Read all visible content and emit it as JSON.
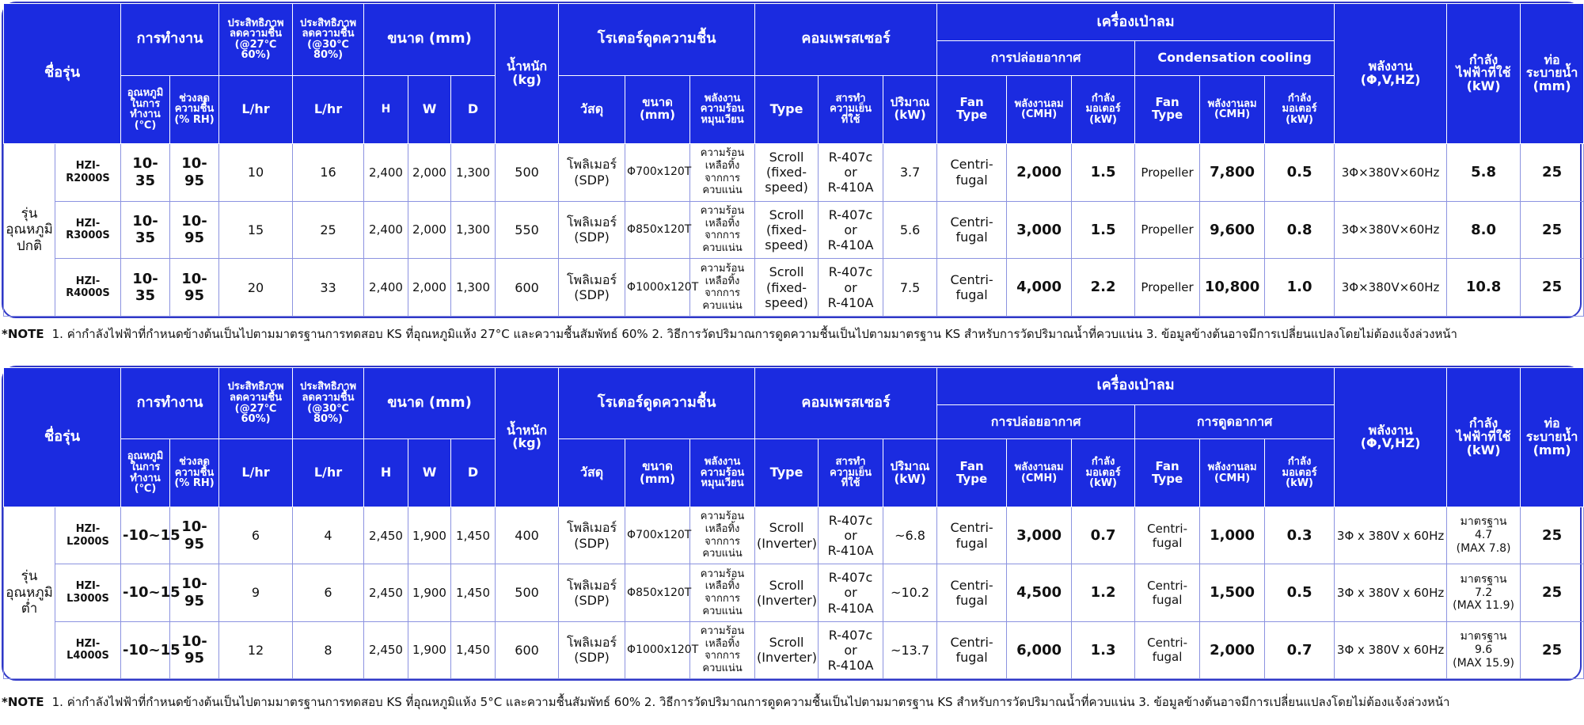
{
  "header": {
    "model_name": "ชื่อรุ่น",
    "operation": "การทำงาน",
    "op_temp": "อุณหภูมิ\nในการ\nทำงาน\n(℃)",
    "op_range": "ช่วงลด\nความชื้น\n(% RH)",
    "eff1_1": "ประสิทธิภาพ\nลดความชื้น\n(@27℃\n60%)",
    "eff2_1": "ประสิทธิภาพ\nลดความชื้น\n(@30℃\n80%)",
    "eff2_1_alt": "ประสิทธิภาพ\nลดความชื้น\n(@30℃\n80%)",
    "eff1_2": "ประสิทธิภาพ\nลดความชื้น\n(@27℃\n60%)",
    "eff2_2": "ประสิทธิภาพ\nลดความชื้น\n(@30℃\n80%)",
    "lhr": "L/hr",
    "size": "ขนาด (mm)",
    "h": "H",
    "w": "W",
    "d": "D",
    "weight": "น้ำหนัก\n(kg)",
    "rotor": "โรเตอร์ดูดความชื้น",
    "rotor_material": "วัสดุ",
    "rotor_size": "ขนาด\n(mm)",
    "rotor_energy": "พลังงาน\nความร้อน\nหมุนเวียน",
    "compressor": "คอมเพรสเซอร์",
    "comp_type": "Type",
    "comp_refrigerant": "สารทำ\nความเย็น\nที่ใช้",
    "comp_amount": "ปริมาณ\n(kW)",
    "blower": "เครื่องเป่าลม",
    "air_release": "การปล่อยอากาศ",
    "condensation_cooling": "Condensation cooling",
    "air_intake": "การดูดอากาศ",
    "fan_type": "Fan\nType",
    "airflow": "พลังงานลม\n(CMH)",
    "motor_power": "กำลัง\nมอเตอร์\n(kW)",
    "power_supply": "พลังงาน\n(Φ,V,HZ)",
    "power_used": "กำลัง\nไฟฟ้าที่ใช้\n(kW)",
    "drain_pipe": "ท่อ\nระบายน้ำ\n(mm)"
  },
  "table1": {
    "category": "รุ่น\nอุณหภูมิ\nปกติ",
    "rows": [
      {
        "model": "HZI-R2000S",
        "temp": "10-35",
        "rh": "10-95",
        "eff1": "10",
        "eff2": "16",
        "h": "2,400",
        "w": "2,000",
        "d": "1,300",
        "weight": "500",
        "material": "โพลิเมอร์\n(SDP)",
        "rotor_size": "Φ700x120T",
        "energy": "ความร้อน\nเหลือทิ้ง\nจากการ\nควบแน่น",
        "comp_type": "Scroll\n(fixed-\nspeed)",
        "refrigerant": "R-407c\nor\nR-410A",
        "comp_kw": "3.7",
        "fan1": "Centri-\nfugal",
        "cmh1": "2,000",
        "motor1": "1.5",
        "fan2": "Propeller",
        "cmh2": "7,800",
        "motor2": "0.5",
        "supply": "3Φ×380V×60Hz",
        "power": "5.8",
        "drain": "25"
      },
      {
        "model": "HZI-R3000S",
        "temp": "10-35",
        "rh": "10-95",
        "eff1": "15",
        "eff2": "25",
        "h": "2,400",
        "w": "2,000",
        "d": "1,300",
        "weight": "550",
        "material": "โพลิเมอร์\n(SDP)",
        "rotor_size": "Φ850x120T",
        "energy": "ความร้อน\nเหลือทิ้ง\nจากการ\nควบแน่น",
        "comp_type": "Scroll\n(fixed-\nspeed)",
        "refrigerant": "R-407c\nor\nR-410A",
        "comp_kw": "5.6",
        "fan1": "Centri-\nfugal",
        "cmh1": "3,000",
        "motor1": "1.5",
        "fan2": "Propeller",
        "cmh2": "9,600",
        "motor2": "0.8",
        "supply": "3Φ×380V×60Hz",
        "power": "8.0",
        "drain": "25"
      },
      {
        "model": "HZI-R4000S",
        "temp": "10-35",
        "rh": "10-95",
        "eff1": "20",
        "eff2": "33",
        "h": "2,400",
        "w": "2,000",
        "d": "1,300",
        "weight": "600",
        "material": "โพลิเมอร์\n(SDP)",
        "rotor_size": "Φ1000x120T",
        "energy": "ความร้อน\nเหลือทิ้ง\nจากการ\nควบแน่น",
        "comp_type": "Scroll\n(fixed-\nspeed)",
        "refrigerant": "R-407c\nor\nR-410A",
        "comp_kw": "7.5",
        "fan1": "Centri-\nfugal",
        "cmh1": "4,000",
        "motor1": "2.2",
        "fan2": "Propeller",
        "cmh2": "10,800",
        "motor2": "1.0",
        "supply": "3Φ×380V×60Hz",
        "power": "10.8",
        "drain": "25"
      }
    ],
    "note_label": "*NOTE",
    "note_text": "1. ค่ากำลังไฟฟ้าที่กำหนดข้างต้นเป็นไปตามมาตรฐานการทดสอบ KS ที่อุณหภูมิแห้ง 27°C และความชื้นสัมพัทธ์ 60%   2. วิธีการวัดปริมาณการดูดความชื้นเป็นไปตามมาตรฐาน KS สำหรับการวัดปริมาณน้ำที่ควบแน่น   3. ข้อมูลข้างต้นอาจมีการเปลี่ยนแปลงโดยไม่ต้องแจ้งล่วงหน้า"
  },
  "table2": {
    "category": "รุ่น\nอุณหภูมิ\nต่ำ",
    "rows": [
      {
        "model": "HZI-L2000S",
        "temp": "-10~15",
        "rh": "10-95",
        "eff1": "6",
        "eff2": "4",
        "h": "2,450",
        "w": "1,900",
        "d": "1,450",
        "weight": "400",
        "material": "โพลิเมอร์\n(SDP)",
        "rotor_size": "Φ700x120T",
        "energy": "ความร้อน\nเหลือทิ้ง\nจากการ\nควบแน่น",
        "comp_type": "Scroll\n(Inverter)",
        "refrigerant": "R-407c\nor\nR-410A",
        "comp_kw": "~6.8",
        "fan1": "Centri-\nfugal",
        "cmh1": "3,000",
        "motor1": "0.7",
        "fan2": "Centri-\nfugal",
        "cmh2": "1,000",
        "motor2": "0.3",
        "supply": "3Φ x 380V x 60Hz",
        "power": "มาตรฐาน\n4.7\n(MAX 7.8)",
        "drain": "25"
      },
      {
        "model": "HZI-L3000S",
        "temp": "-10~15",
        "rh": "10-95",
        "eff1": "9",
        "eff2": "6",
        "h": "2,450",
        "w": "1,900",
        "d": "1,450",
        "weight": "500",
        "material": "โพลิเมอร์\n(SDP)",
        "rotor_size": "Φ850x120T",
        "energy": "ความร้อน\nเหลือทิ้ง\nจากการ\nควบแน่น",
        "comp_type": "Scroll\n(Inverter)",
        "refrigerant": "R-407c\nor\nR-410A",
        "comp_kw": "~10.2",
        "fan1": "Centri-\nfugal",
        "cmh1": "4,500",
        "motor1": "1.2",
        "fan2": "Centri-\nfugal",
        "cmh2": "1,500",
        "motor2": "0.5",
        "supply": "3Φ x 380V x 60Hz",
        "power": "มาตรฐาน\n7.2\n(MAX 11.9)",
        "drain": "25"
      },
      {
        "model": "HZI-L4000S",
        "temp": "-10~15",
        "rh": "10-95",
        "eff1": "12",
        "eff2": "8",
        "h": "2,450",
        "w": "1,900",
        "d": "1,450",
        "weight": "600",
        "material": "โพลิเมอร์\n(SDP)",
        "rotor_size": "Φ1000x120T",
        "energy": "ความร้อน\nเหลือทิ้ง\nจากการ\nควบแน่น",
        "comp_type": "Scroll\n(Inverter)",
        "refrigerant": "R-407c\nor\nR-410A",
        "comp_kw": "~13.7",
        "fan1": "Centri-\nfugal",
        "cmh1": "6,000",
        "motor1": "1.3",
        "fan2": "Centri-\nfugal",
        "cmh2": "2,000",
        "motor2": "0.7",
        "supply": "3Φ x 380V x 60Hz",
        "power": "มาตรฐาน\n9.6\n(MAX 15.9)",
        "drain": "25"
      }
    ],
    "note_label": "*NOTE",
    "note_text": "1. ค่ากำลังไฟฟ้าที่กำหนดข้างต้นเป็นไปตามมาตรฐานการทดสอบ KS ที่อุณหภูมิแห้ง 5°C และความชื้นสัมพัทธ์ 60%   2. วิธีการวัดปริมาณการดูดความชื้นเป็นไปตามมาตรฐาน KS สำหรับการวัดปริมาณน้ำที่ควบแน่น   3. ข้อมูลข้างต้นอาจมีการเปลี่ยนแปลงโดยไม่ต้องแจ้งล่วงหน้า"
  }
}
